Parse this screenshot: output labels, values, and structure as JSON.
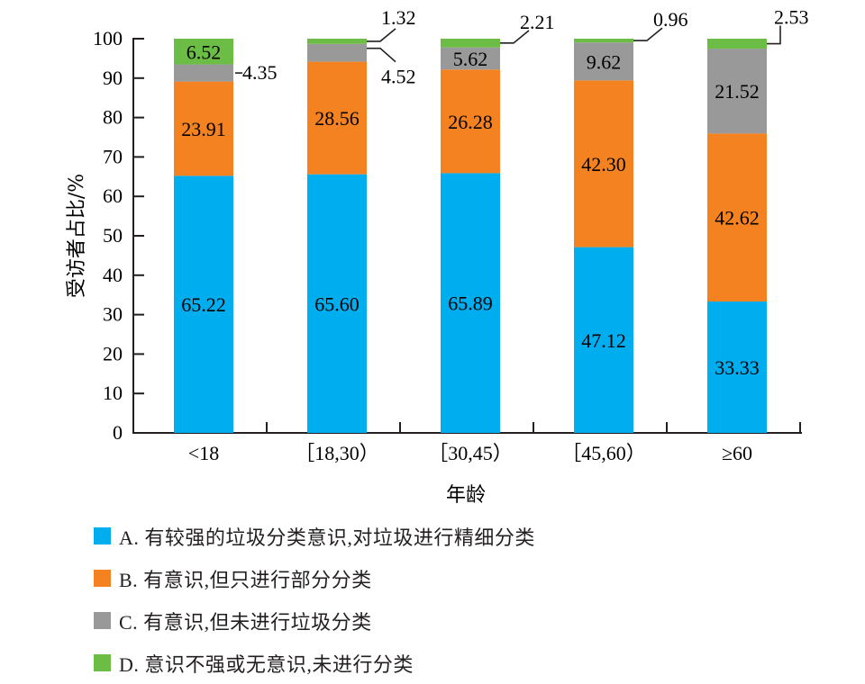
{
  "chart_data": {
    "type": "bar",
    "stacked": true,
    "title": "",
    "xlabel": "年龄",
    "ylabel": "受访者占比/%",
    "ylim": [
      0,
      100
    ],
    "yticks": [
      "0",
      "10",
      "20",
      "30",
      "40",
      "50",
      "60",
      "70",
      "80",
      "90",
      "100"
    ],
    "categories": [
      "<18",
      "［18,30）",
      "［30,45）",
      "［45,60）",
      "≥60"
    ],
    "series": [
      {
        "name": "A. 有较强的垃圾分类意识,对垃圾进行精细分类",
        "color": "#00adef",
        "values": [
          65.22,
          65.6,
          65.89,
          47.12,
          33.33
        ],
        "labels": [
          "65.22",
          "65.60",
          "65.89",
          "47.12",
          "33.33"
        ]
      },
      {
        "name": "B. 有意识,但只进行部分分类",
        "color": "#f58220",
        "values": [
          23.91,
          28.56,
          26.28,
          42.3,
          42.62
        ],
        "labels": [
          "23.91",
          "28.56",
          "26.28",
          "42.30",
          "42.62"
        ]
      },
      {
        "name": "C. 有意识,但未进行垃圾分类",
        "color": "#999999",
        "values": [
          4.35,
          4.52,
          5.62,
          9.62,
          21.52
        ],
        "labels": [
          "4.35",
          "4.52",
          "5.62",
          "9.62",
          "21.52"
        ]
      },
      {
        "name": "D. 意识不强或无意识,未进行分类",
        "color": "#6cbd45",
        "values": [
          6.52,
          1.32,
          2.21,
          0.96,
          2.53
        ],
        "labels": [
          "6.52",
          "1.32",
          "2.21",
          "0.96",
          "2.53"
        ]
      }
    ],
    "grid": false,
    "legend_position": "bottom-left"
  }
}
